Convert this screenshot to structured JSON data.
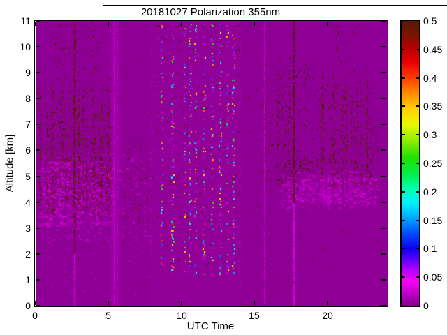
{
  "chart_data": {
    "type": "heatmap",
    "title": "20181027 Polarization 355nm",
    "xlabel": "UTC Time",
    "ylabel": "Altitude [km]",
    "xlim": [
      0,
      24
    ],
    "ylim": [
      0,
      11
    ],
    "xticks": [
      0,
      5,
      10,
      15,
      20
    ],
    "yticks": [
      0,
      1,
      2,
      3,
      4,
      5,
      6,
      7,
      8,
      9,
      10,
      11
    ],
    "grid": false,
    "legend": "none",
    "background_value": 0,
    "background_color": "#8E0094",
    "colorbar": {
      "min": 0,
      "max": 0.5,
      "tick_values": [
        0,
        0.05,
        0.1,
        0.15,
        0.2,
        0.25,
        0.3,
        0.35,
        0.4,
        0.45,
        0.5
      ],
      "tick_labels": [
        "0",
        "0.05",
        "0.1",
        "0.15",
        "0.2",
        "0.25",
        "0.3",
        "0.35",
        "0.4",
        "0.45",
        "0.5"
      ],
      "gradient_stops": [
        [
          "#86008C",
          0
        ],
        [
          "#B800C4",
          0.04
        ],
        [
          "#F800F8",
          0.085
        ],
        [
          "#B400FF",
          0.125
        ],
        [
          "#5500FA",
          0.165
        ],
        [
          "#1000F0",
          0.2
        ],
        [
          "#0055FF",
          0.26
        ],
        [
          "#00AAFF",
          0.31
        ],
        [
          "#00F0FF",
          0.36
        ],
        [
          "#00FFB0",
          0.41
        ],
        [
          "#00F050",
          0.46
        ],
        [
          "#20E000",
          0.52
        ],
        [
          "#90EE00",
          0.58
        ],
        [
          "#E8F800",
          0.635
        ],
        [
          "#FFD000",
          0.69
        ],
        [
          "#FF8C00",
          0.745
        ],
        [
          "#FF3C00",
          0.8
        ],
        [
          "#E80000",
          0.855
        ],
        [
          "#B00000",
          0.91
        ],
        [
          "#701800",
          0.96
        ],
        [
          "#581808",
          1
        ]
      ]
    },
    "features": [
      {
        "type": "speckle",
        "t": [
          0,
          24
        ],
        "z": [
          0,
          11
        ],
        "density": 0.006,
        "colors": [
          "#9C00A4",
          "#A600AC"
        ]
      },
      {
        "type": "speckle",
        "t": [
          0,
          24
        ],
        "z": [
          0.5,
          11
        ],
        "density": 0.0015,
        "colors": [
          "#4A1404"
        ]
      },
      {
        "type": "band",
        "t": [
          5.05,
          5.7
        ],
        "z": [
          0,
          11
        ],
        "color": "#A400AC",
        "alpha": 0.5
      },
      {
        "type": "band",
        "t": [
          7.75,
          14.05
        ],
        "z": [
          0,
          11
        ],
        "color": "#930099",
        "alpha": 0.55
      },
      {
        "type": "haze",
        "t": [
          0,
          7.9
        ],
        "z": [
          2.4,
          5.9
        ],
        "density": 0.09,
        "colors": [
          "#BE00C6",
          "#D200D8",
          "#AE00B8"
        ],
        "columnar": true
      },
      {
        "type": "haze",
        "t": [
          0.2,
          5.2
        ],
        "z": [
          3.1,
          5.6
        ],
        "density": 0.16,
        "colors": [
          "#D400DA",
          "#E400E8"
        ],
        "columnar": true
      },
      {
        "type": "haze",
        "t": [
          0,
          7.9
        ],
        "z": [
          0.2,
          2.4
        ],
        "density": 0.025,
        "colors": [
          "#AC00B4"
        ],
        "columnar": true
      },
      {
        "type": "haze",
        "t": [
          7.75,
          14.05
        ],
        "z": [
          0.8,
          11
        ],
        "density": 0.035,
        "colors": [
          "#A800B2",
          "#B600BE"
        ]
      },
      {
        "type": "haze",
        "t": [
          16.6,
          23.35
        ],
        "z": [
          3.7,
          5.2
        ],
        "density": 0.13,
        "colors": [
          "#C600CC",
          "#D800DE",
          "#B200BC"
        ],
        "columnar": true
      },
      {
        "type": "haze",
        "t": [
          17.2,
          22.9
        ],
        "z": [
          3.95,
          4.95
        ],
        "density": 0.2,
        "colors": [
          "#E000E6",
          "#CE00D4"
        ],
        "columnar": true
      },
      {
        "type": "speckle",
        "t": [
          0.2,
          5.1
        ],
        "z": [
          3.2,
          8.8
        ],
        "density": 0.17,
        "colors": [
          "#4A1404",
          "#5C1C02",
          "#6E2406"
        ],
        "columnar": true,
        "vpeak": [
          4.2,
          7.3
        ]
      },
      {
        "type": "speckle",
        "t": [
          1.2,
          4.6
        ],
        "z": [
          8.8,
          11
        ],
        "density": 0.028,
        "colors": [
          "#4A1404",
          "#5C1C02"
        ],
        "columnar": true
      },
      {
        "type": "speckle",
        "t": [
          5.9,
          7.8
        ],
        "z": [
          3,
          6.5
        ],
        "density": 0.035,
        "colors": [
          "#4A1404",
          "#5C1C02"
        ],
        "columnar": true
      },
      {
        "type": "speckle",
        "t": [
          7.75,
          14.05
        ],
        "z": [
          1.5,
          11
        ],
        "density": 0.01,
        "colors": [
          "#4A1404"
        ],
        "columnar": true
      },
      {
        "type": "speckle",
        "t": [
          15.3,
          17.4
        ],
        "z": [
          4.2,
          9.8
        ],
        "density": 0.09,
        "colors": [
          "#4A1404",
          "#5C1C02"
        ],
        "columnar": true,
        "vpeak": [
          5,
          8.5
        ]
      },
      {
        "type": "speckle",
        "t": [
          17.4,
          19.4
        ],
        "z": [
          5.5,
          9.5
        ],
        "density": 0.022,
        "colors": [
          "#4A1404"
        ],
        "columnar": true
      },
      {
        "type": "speckle",
        "t": [
          19.4,
          22.7
        ],
        "z": [
          4.3,
          9.3
        ],
        "density": 0.13,
        "colors": [
          "#4A1404",
          "#5C1C02",
          "#6E2406"
        ],
        "columnar": true,
        "vpeak": [
          5,
          8
        ]
      },
      {
        "type": "speckle",
        "t": [
          20,
          22.3
        ],
        "z": [
          9.3,
          10.9
        ],
        "density": 0.03,
        "colors": [
          "#4A1404"
        ],
        "columnar": true
      },
      {
        "type": "speckle",
        "t": [
          22.7,
          23.4
        ],
        "z": [
          4.4,
          7.3
        ],
        "density": 0.06,
        "colors": [
          "#4A1404",
          "#5C1C02"
        ],
        "columnar": true
      },
      {
        "type": "speckle",
        "t": [
          17,
          19.4
        ],
        "z": [
          4.95,
          5.7
        ],
        "density": 0.12,
        "colors": [
          "#4A1404",
          "#5C1C02"
        ],
        "columnar": true
      },
      {
        "type": "vline",
        "t": 2.56,
        "z": [
          2.05,
          10.9
        ],
        "color": "#5A1A04",
        "w": 2,
        "gap": 0.3
      },
      {
        "type": "vline",
        "t": 2.56,
        "z": [
          0,
          2.05
        ],
        "color": "#D600DC",
        "w": 2,
        "gap": 0.08
      },
      {
        "type": "vline",
        "t": 5.3,
        "z": [
          0,
          11
        ],
        "color": "#CC00D2",
        "w": 2,
        "gap": 0.18
      },
      {
        "type": "vline",
        "t": 5.55,
        "z": [
          0,
          11
        ],
        "color": "#BC00C4",
        "w": 1,
        "gap": 0.35
      },
      {
        "type": "vline",
        "t": 15.55,
        "z": [
          0,
          11
        ],
        "color": "#C600CE",
        "w": 2,
        "gap": 0.22
      },
      {
        "type": "vline",
        "t": 17.55,
        "z": [
          3.9,
          11
        ],
        "color": "#521803",
        "w": 2,
        "gap": 0.25
      },
      {
        "type": "vline",
        "t": 17.55,
        "z": [
          0,
          3.9
        ],
        "color": "#DA00E0",
        "w": 2,
        "gap": 0.08
      },
      {
        "type": "speckle",
        "t": [
          8.47,
          8.63
        ],
        "z": [
          1.2,
          10.9
        ],
        "density": 0.085,
        "size": 2,
        "colors": [
          "#2850FF",
          "#00B4FF",
          "#00FFFF",
          "#30E030",
          "#F0F000",
          "#FF9000",
          "#FF3030",
          "#B400FF",
          "#E800E8"
        ]
      },
      {
        "type": "speckle",
        "t": [
          9.22,
          9.38
        ],
        "z": [
          1.2,
          10.9
        ],
        "density": 0.085,
        "size": 2,
        "colors": [
          "#2850FF",
          "#00B4FF",
          "#00FFFF",
          "#30E030",
          "#F0F000",
          "#FF9000",
          "#FF3030",
          "#B400FF",
          "#E800E8"
        ]
      },
      {
        "type": "speckle",
        "t": [
          10.07,
          10.23
        ],
        "z": [
          1.2,
          10.9
        ],
        "density": 0.085,
        "size": 2,
        "colors": [
          "#2850FF",
          "#00B4FF",
          "#00FFFF",
          "#30E030",
          "#F0F000",
          "#FF9000",
          "#FF3030",
          "#B400FF",
          "#E800E8"
        ]
      },
      {
        "type": "speckle",
        "t": [
          10.42,
          10.58
        ],
        "z": [
          1.2,
          10.9
        ],
        "density": 0.085,
        "size": 2,
        "colors": [
          "#2850FF",
          "#00B4FF",
          "#00FFFF",
          "#30E030",
          "#F0F000",
          "#FF9000",
          "#FF3030",
          "#B400FF",
          "#E800E8"
        ]
      },
      {
        "type": "speckle",
        "t": [
          10.77,
          10.93
        ],
        "z": [
          1.2,
          10.9
        ],
        "density": 0.085,
        "size": 2,
        "colors": [
          "#2850FF",
          "#00B4FF",
          "#00FFFF",
          "#30E030",
          "#F0F000",
          "#FF9000",
          "#FF3030",
          "#B400FF",
          "#E800E8"
        ]
      },
      {
        "type": "speckle",
        "t": [
          11.37,
          11.53
        ],
        "z": [
          1.2,
          10.9
        ],
        "density": 0.085,
        "size": 2,
        "colors": [
          "#2850FF",
          "#00B4FF",
          "#00FFFF",
          "#30E030",
          "#F0F000",
          "#FF9000",
          "#FF3030",
          "#B400FF",
          "#E800E8"
        ]
      },
      {
        "type": "speckle",
        "t": [
          11.92,
          12.08
        ],
        "z": [
          1.2,
          10.9
        ],
        "density": 0.085,
        "size": 2,
        "colors": [
          "#2850FF",
          "#00B4FF",
          "#00FFFF",
          "#30E030",
          "#F0F000",
          "#FF9000",
          "#FF3030",
          "#B400FF",
          "#E800E8"
        ]
      },
      {
        "type": "speckle",
        "t": [
          12.47,
          12.63
        ],
        "z": [
          1.2,
          10.9
        ],
        "density": 0.085,
        "size": 2,
        "colors": [
          "#2850FF",
          "#00B4FF",
          "#00FFFF",
          "#30E030",
          "#F0F000",
          "#FF9000",
          "#FF3030",
          "#B400FF",
          "#E800E8"
        ]
      },
      {
        "type": "speckle",
        "t": [
          12.97,
          13.13
        ],
        "z": [
          1.2,
          10.9
        ],
        "density": 0.085,
        "size": 2,
        "colors": [
          "#2850FF",
          "#00B4FF",
          "#00FFFF",
          "#30E030",
          "#F0F000",
          "#FF9000",
          "#FF3030",
          "#B400FF",
          "#E800E8"
        ]
      },
      {
        "type": "speckle",
        "t": [
          13.37,
          13.53
        ],
        "z": [
          1.2,
          10.9
        ],
        "density": 0.085,
        "size": 2,
        "colors": [
          "#2850FF",
          "#00B4FF",
          "#00FFFF",
          "#30E030",
          "#F0F000",
          "#FF9000",
          "#FF3030",
          "#B400FF",
          "#E800E8"
        ]
      }
    ]
  },
  "colors": {
    "axis": "#000000",
    "figure_background": "#FFFFFF"
  }
}
